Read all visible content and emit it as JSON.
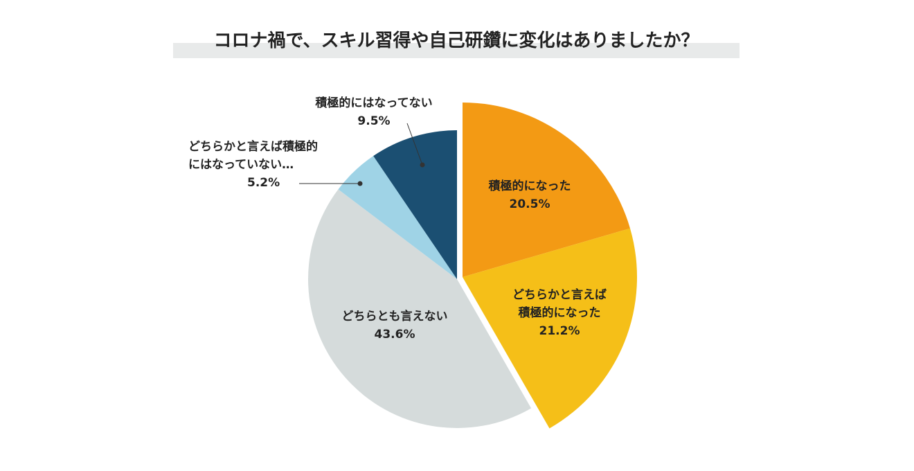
{
  "chart_data": {
    "type": "pie",
    "title": "コロナ禍で、スキル習得や自己研鑽に変化はありましたか？",
    "categories": [
      "積極的になった",
      "どちらかと言えば\n積極的になった",
      "どちらとも言えない",
      "どちらかと言えば積極的\nにはなっていない…",
      "積極的にはなってない"
    ],
    "values": [
      20.5,
      21.2,
      43.6,
      5.2,
      9.5
    ],
    "value_labels": [
      "20.5%",
      "21.2%",
      "43.6%",
      "5.2%",
      "9.5%"
    ],
    "colors": [
      "#f39a14",
      "#f5bf18",
      "#d5dbdb",
      "#9fd3e6",
      "#1b4f72"
    ],
    "explode": [
      true,
      true,
      false,
      false,
      false
    ]
  }
}
